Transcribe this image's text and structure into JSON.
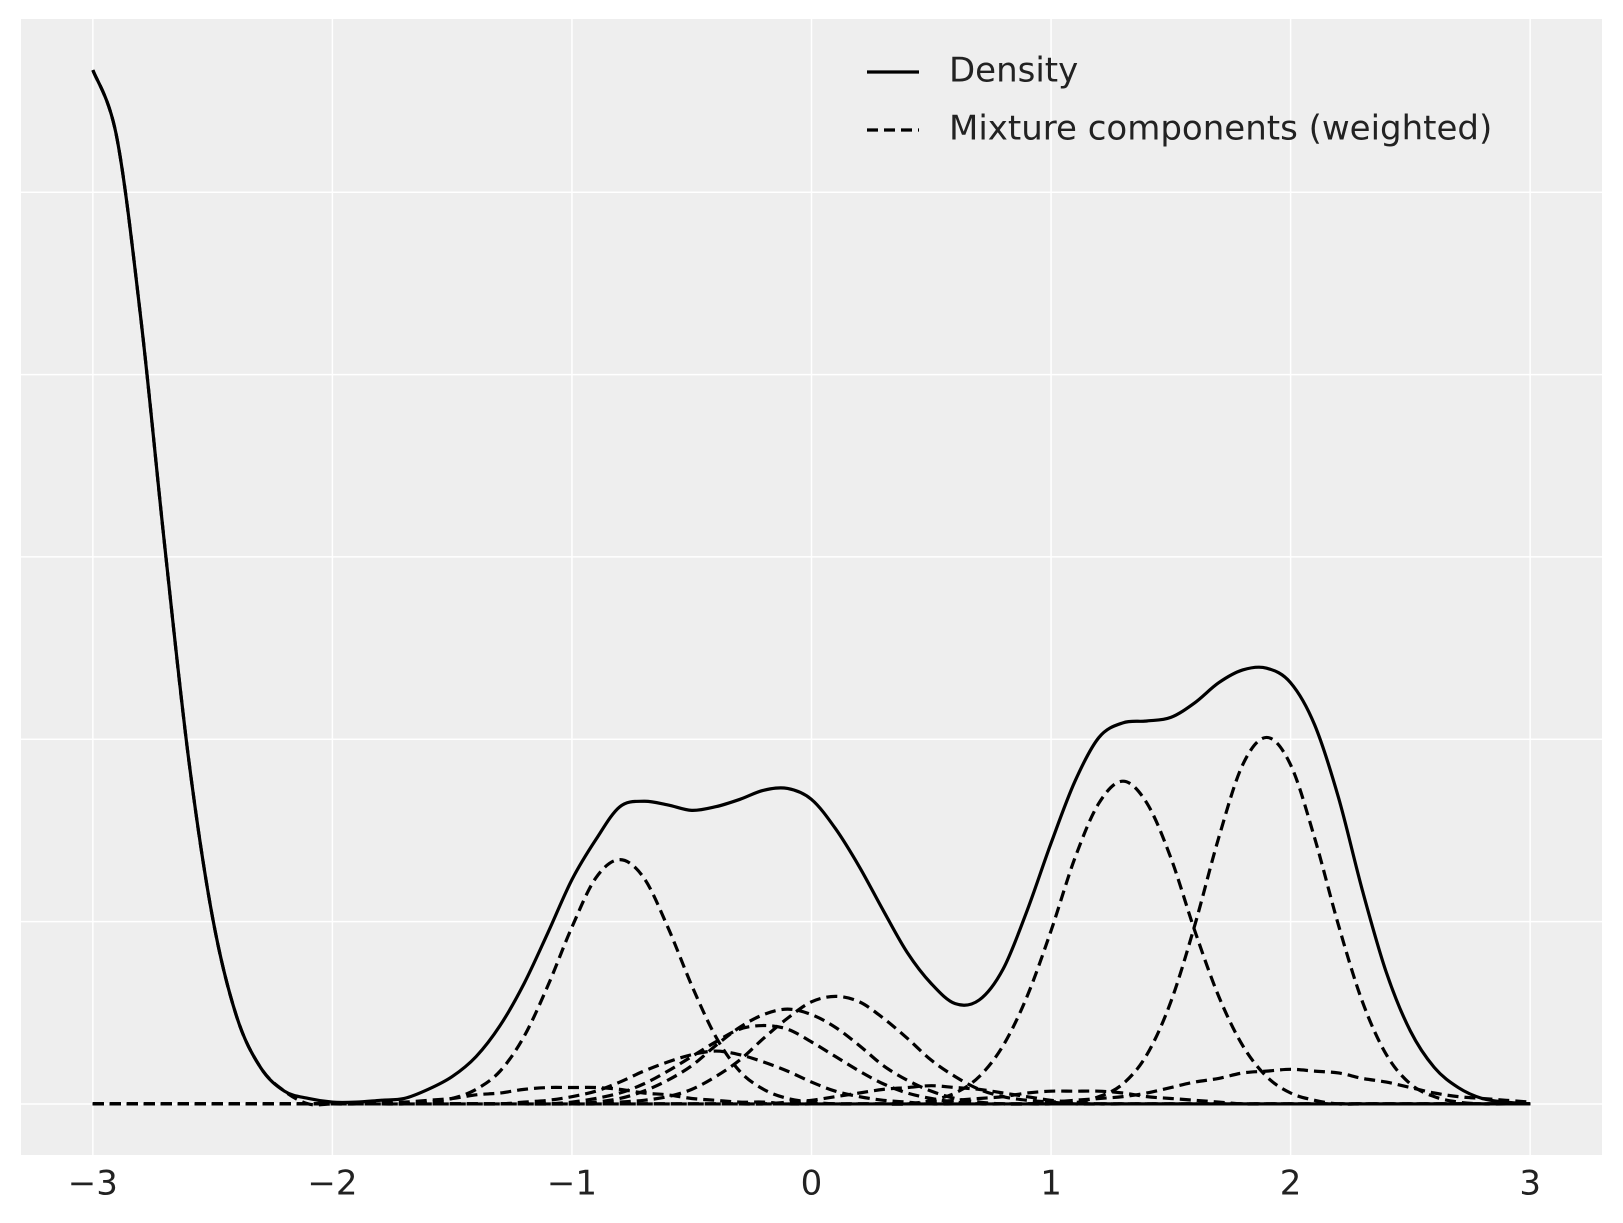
{
  "chart_data": {
    "type": "line",
    "x": [
      -3,
      -2.9,
      -2.8,
      -2.7,
      -2.6,
      -2.5,
      -2.4,
      -2.3,
      -2.2,
      -2.1,
      -2,
      -1.9,
      -1.8,
      -1.7,
      -1.6,
      -1.5,
      -1.4,
      -1.3,
      -1.2,
      -1.1,
      -1,
      -0.9,
      -0.8,
      -0.7,
      -0.6,
      -0.5,
      -0.4,
      -0.3,
      -0.2,
      -0.1,
      0,
      0.1,
      0.2,
      0.3,
      0.4,
      0.5,
      0.6,
      0.7,
      0.8,
      0.9,
      1,
      1.1,
      1.2,
      1.3,
      1.4,
      1.5,
      1.6,
      1.7,
      1.8,
      1.9,
      2,
      2.1,
      2.2,
      2.3,
      2.4,
      2.5,
      2.6,
      2.7,
      2.8,
      2.9,
      3
    ],
    "series": [
      {
        "name": "Density",
        "color": "#000000",
        "dashed": false,
        "values": [
          0.567,
          0.53,
          0.431,
          0.306,
          0.189,
          0.102,
          0.048,
          0.02,
          0.007,
          0.003,
          0.001,
          0.001,
          0.002,
          0.003,
          0.008,
          0.015,
          0.026,
          0.043,
          0.066,
          0.094,
          0.123,
          0.145,
          0.163,
          0.166,
          0.164,
          0.161,
          0.163,
          0.167,
          0.172,
          0.173,
          0.167,
          0.151,
          0.13,
          0.106,
          0.083,
          0.066,
          0.055,
          0.057,
          0.074,
          0.106,
          0.143,
          0.177,
          0.201,
          0.209,
          0.21,
          0.212,
          0.22,
          0.231,
          0.238,
          0.239,
          0.231,
          0.208,
          0.168,
          0.117,
          0.072,
          0.04,
          0.02,
          0.009,
          0.003,
          0.001,
          0
        ]
      },
      {
        "name": "Mixture components (weighted)",
        "color": "#000000",
        "dashed": true,
        "values": [
          [
            0.567,
            0.53,
            0.431,
            0.306,
            0.189,
            0.102,
            0.048,
            0.02,
            0.007,
            0,
            0,
            0,
            0,
            0,
            0,
            0,
            0,
            0,
            0,
            0,
            0,
            0,
            0,
            0,
            0,
            0,
            0,
            0,
            0,
            0,
            0,
            0,
            0,
            0,
            0,
            0,
            0,
            0,
            0,
            0,
            0,
            0,
            0,
            0,
            0,
            0,
            0,
            0,
            0,
            0,
            0,
            0,
            0,
            0,
            0,
            0,
            0,
            0,
            0,
            0,
            0
          ],
          [
            0,
            0,
            0,
            0,
            0,
            0,
            0,
            0,
            0,
            0,
            0,
            0,
            0,
            0,
            0.001,
            0.003,
            0.008,
            0.018,
            0.037,
            0.065,
            0.097,
            0.124,
            0.134,
            0.124,
            0.097,
            0.065,
            0.037,
            0.018,
            0.008,
            0.003,
            0.001,
            0,
            0,
            0,
            0,
            0,
            0,
            0,
            0,
            0,
            0,
            0,
            0,
            0,
            0,
            0,
            0,
            0,
            0,
            0,
            0,
            0,
            0,
            0,
            0,
            0,
            0,
            0,
            0,
            0,
            0
          ],
          [
            0,
            0,
            0,
            0,
            0,
            0,
            0,
            0,
            0,
            0,
            0,
            0,
            0,
            0,
            0,
            0,
            0,
            0,
            0,
            0,
            0,
            0,
            0,
            0,
            0,
            0,
            0,
            0,
            0,
            0,
            0,
            0,
            0,
            0,
            0,
            0.002,
            0.006,
            0.015,
            0.032,
            0.059,
            0.095,
            0.135,
            0.165,
            0.177,
            0.165,
            0.135,
            0.095,
            0.059,
            0.032,
            0.015,
            0.006,
            0.002,
            0,
            0,
            0,
            0,
            0,
            0,
            0,
            0,
            0
          ],
          [
            0,
            0,
            0,
            0,
            0,
            0,
            0,
            0,
            0,
            0,
            0,
            0,
            0,
            0,
            0,
            0,
            0,
            0,
            0,
            0,
            0,
            0,
            0,
            0,
            0,
            0,
            0,
            0,
            0,
            0,
            0,
            0,
            0,
            0,
            0,
            0,
            0,
            0,
            0,
            0,
            0,
            0.001,
            0.004,
            0.011,
            0.027,
            0.056,
            0.098,
            0.146,
            0.186,
            0.201,
            0.186,
            0.146,
            0.098,
            0.056,
            0.027,
            0.011,
            0.004,
            0.001,
            0,
            0,
            0
          ],
          [
            0,
            0,
            0,
            0,
            0,
            0,
            0,
            0,
            0,
            0,
            0,
            0,
            0,
            0,
            0,
            0,
            0,
            0,
            0,
            0,
            0,
            0,
            0.001,
            0.002,
            0.004,
            0.008,
            0.015,
            0.024,
            0.036,
            0.047,
            0.056,
            0.059,
            0.056,
            0.047,
            0.036,
            0.024,
            0.015,
            0.008,
            0.004,
            0.002,
            0.001,
            0,
            0,
            0,
            0,
            0,
            0,
            0,
            0,
            0,
            0,
            0,
            0,
            0,
            0,
            0,
            0,
            0,
            0,
            0,
            0
          ],
          [
            0,
            0,
            0,
            0,
            0,
            0,
            0,
            0,
            0,
            0,
            0,
            0,
            0,
            0,
            0,
            0,
            0,
            0,
            0,
            0,
            0,
            0.001,
            0.003,
            0.007,
            0.013,
            0.021,
            0.032,
            0.042,
            0.049,
            0.052,
            0.049,
            0.042,
            0.032,
            0.021,
            0.013,
            0.007,
            0.003,
            0.001,
            0,
            0,
            0,
            0,
            0,
            0,
            0,
            0,
            0,
            0,
            0,
            0,
            0,
            0,
            0,
            0,
            0,
            0,
            0,
            0,
            0,
            0,
            0
          ],
          [
            0,
            0,
            0,
            0,
            0,
            0,
            0,
            0,
            0,
            0,
            0,
            0,
            0,
            0,
            0,
            0,
            0,
            0,
            0,
            0,
            0.001,
            0.003,
            0.006,
            0.011,
            0.018,
            0.026,
            0.034,
            0.041,
            0.043,
            0.041,
            0.034,
            0.026,
            0.018,
            0.011,
            0.006,
            0.003,
            0.001,
            0,
            0,
            0,
            0,
            0,
            0,
            0,
            0,
            0,
            0,
            0,
            0,
            0,
            0,
            0,
            0,
            0,
            0,
            0,
            0,
            0,
            0,
            0,
            0
          ],
          [
            0,
            0,
            0,
            0,
            0,
            0,
            0,
            0,
            0,
            0,
            0,
            0,
            0,
            0,
            0,
            0,
            0,
            0,
            0.001,
            0.002,
            0.004,
            0.007,
            0.012,
            0.018,
            0.023,
            0.027,
            0.029,
            0.027,
            0.023,
            0.018,
            0.012,
            0.007,
            0.004,
            0.002,
            0.001,
            0,
            0,
            0,
            0,
            0,
            0,
            0,
            0,
            0,
            0,
            0,
            0,
            0,
            0,
            0,
            0,
            0,
            0,
            0,
            0,
            0,
            0,
            0,
            0,
            0,
            0
          ],
          [
            0,
            0,
            0,
            0,
            0,
            0,
            0,
            0,
            0,
            0,
            0,
            0,
            0,
            0,
            0,
            0,
            0,
            0,
            0,
            0,
            0,
            0,
            0,
            0,
            0,
            0,
            0,
            0,
            0,
            0,
            0,
            0,
            0,
            0,
            0,
            0,
            0,
            0,
            0,
            0,
            0.001,
            0.002,
            0.003,
            0.004,
            0.006,
            0.009,
            0.012,
            0.014,
            0.017,
            0.018,
            0.019,
            0.018,
            0.017,
            0.014,
            0.012,
            0.009,
            0.006,
            0.004,
            0.003,
            0.002,
            0.001
          ],
          [
            0,
            0,
            0,
            0,
            0,
            0,
            0,
            0,
            0,
            0,
            0,
            0,
            0.001,
            0.001,
            0.002,
            0.003,
            0.005,
            0.006,
            0.008,
            0.009,
            0.009,
            0.009,
            0.008,
            0.006,
            0.005,
            0.003,
            0.002,
            0.001,
            0.001,
            0,
            0,
            0,
            0,
            0,
            0,
            0,
            0,
            0,
            0,
            0,
            0,
            0,
            0,
            0,
            0,
            0,
            0,
            0,
            0,
            0,
            0,
            0,
            0,
            0,
            0,
            0,
            0,
            0,
            0,
            0,
            0
          ],
          [
            0,
            0,
            0,
            0,
            0,
            0,
            0,
            0,
            0,
            0,
            0,
            0,
            0,
            0,
            0,
            0,
            0,
            0,
            0,
            0,
            0,
            0,
            0,
            0,
            0,
            0,
            0,
            0,
            0,
            0.001,
            0.002,
            0.004,
            0.006,
            0.008,
            0.009,
            0.01,
            0.009,
            0.008,
            0.006,
            0.004,
            0.002,
            0.001,
            0,
            0,
            0,
            0,
            0,
            0,
            0,
            0,
            0,
            0,
            0,
            0,
            0,
            0,
            0,
            0,
            0,
            0,
            0
          ],
          [
            0,
            0,
            0,
            0,
            0,
            0,
            0,
            0,
            0,
            0,
            0,
            0,
            0,
            0,
            0,
            0,
            0,
            0,
            0,
            0,
            0,
            0,
            0,
            0,
            0,
            0,
            0,
            0,
            0,
            0,
            0,
            0,
            0,
            0,
            0,
            0.001,
            0.002,
            0.003,
            0.004,
            0.006,
            0.007,
            0.007,
            0.007,
            0.006,
            0.004,
            0.003,
            0.002,
            0.001,
            0,
            0,
            0,
            0,
            0,
            0,
            0,
            0,
            0,
            0,
            0,
            0,
            0
          ]
        ]
      }
    ],
    "xlim": [
      -3.3,
      3.3
    ],
    "xticks": [
      {
        "value": -3,
        "label": "−3"
      },
      {
        "value": -2,
        "label": "−2"
      },
      {
        "value": -1,
        "label": "−1"
      },
      0,
      1,
      2,
      3
    ],
    "ylim": [
      -0.028,
      0.595
    ],
    "yticks": [
      0,
      0.1,
      0.2,
      0.3,
      0.4,
      0.5
    ],
    "ytick_labels": false,
    "grid": true,
    "legend": "upper right"
  }
}
